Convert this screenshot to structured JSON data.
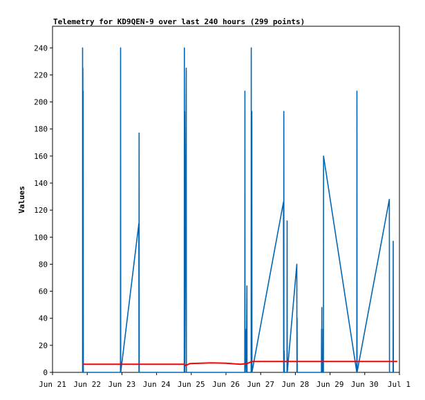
{
  "chart_data": {
    "type": "line",
    "title": "Telemetry for KD9QEN-9 over last 240 hours (299 points)",
    "xlabel": "",
    "ylabel": "Values",
    "x_ticks": [
      "Jun 21",
      "Jun 22",
      "Jun 23",
      "Jun 24",
      "Jun 25",
      "Jun 26",
      "Jun 27",
      "Jun 28",
      "Jun 29",
      "Jun 30",
      "Jul 1"
    ],
    "xlim_hours": [
      0,
      240
    ],
    "y_ticks": [
      0,
      20,
      40,
      60,
      80,
      100,
      120,
      140,
      160,
      180,
      200,
      220,
      240
    ],
    "ylim": [
      0,
      256
    ],
    "grid": false,
    "legend": "none",
    "series": [
      {
        "color": "#0066b3",
        "points": [
          [
            20.8,
            0
          ],
          [
            20.8,
            240
          ],
          [
            20.9,
            0
          ],
          [
            21.0,
            225
          ],
          [
            21.1,
            0
          ],
          [
            21.2,
            208
          ],
          [
            21.3,
            0
          ],
          [
            47.0,
            0
          ],
          [
            47.1,
            240
          ],
          [
            47.2,
            0
          ],
          [
            59.7,
            110
          ],
          [
            59.8,
            0
          ],
          [
            59.9,
            177
          ],
          [
            60.0,
            0
          ],
          [
            91.1,
            0
          ],
          [
            91.2,
            240
          ],
          [
            91.3,
            0
          ],
          [
            91.4,
            193
          ],
          [
            91.5,
            0
          ],
          [
            92.5,
            225
          ],
          [
            92.6,
            0
          ],
          [
            133.0,
            0
          ],
          [
            133.1,
            208
          ],
          [
            133.2,
            0
          ],
          [
            134.0,
            32
          ],
          [
            134.1,
            0
          ],
          [
            134.5,
            64
          ],
          [
            134.6,
            0
          ],
          [
            137.4,
            0
          ],
          [
            137.5,
            240
          ],
          [
            137.6,
            0
          ],
          [
            137.9,
            193
          ],
          [
            138.0,
            0
          ],
          [
            159.8,
            126
          ],
          [
            159.9,
            0
          ],
          [
            160.0,
            193
          ],
          [
            160.1,
            0
          ],
          [
            160.3,
            16
          ],
          [
            160.4,
            0
          ],
          [
            162.2,
            0
          ],
          [
            162.3,
            112
          ],
          [
            162.4,
            0
          ],
          [
            169.0,
            80
          ],
          [
            169.1,
            0
          ],
          [
            169.2,
            40
          ],
          [
            169.3,
            0
          ],
          [
            186.0,
            0
          ],
          [
            186.1,
            32
          ],
          [
            186.2,
            0
          ],
          [
            186.3,
            48
          ],
          [
            186.4,
            0
          ],
          [
            187.1,
            0
          ],
          [
            187.2,
            32
          ],
          [
            187.4,
            0
          ],
          [
            187.5,
            160
          ],
          [
            210.5,
            0
          ],
          [
            210.6,
            208
          ],
          [
            210.7,
            0
          ],
          [
            233.0,
            128
          ],
          [
            233.1,
            0
          ],
          [
            235.6,
            0
          ],
          [
            235.7,
            97
          ],
          [
            235.8,
            0
          ]
        ]
      },
      {
        "color": "#ff0000",
        "points": [
          [
            20.8,
            6
          ],
          [
            91.5,
            6
          ],
          [
            92.0,
            5
          ],
          [
            95.0,
            6.5
          ],
          [
            110.0,
            7
          ],
          [
            120.0,
            6.8
          ],
          [
            130.0,
            6
          ],
          [
            134.5,
            6.5
          ],
          [
            138.0,
            8
          ],
          [
            160.0,
            8
          ],
          [
            200.0,
            8
          ],
          [
            238.5,
            8
          ]
        ]
      }
    ]
  }
}
